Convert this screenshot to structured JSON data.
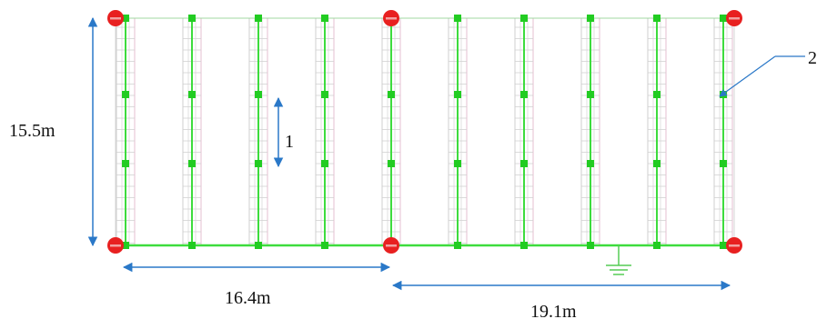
{
  "diagram": {
    "labels": {
      "height": "15.5m",
      "left_span": "16.4m",
      "right_span": "19.1m",
      "marker_1": "1",
      "marker_2": "2"
    },
    "colors": {
      "conductor": "#3ddc3d",
      "node": "#22cc22",
      "corner": "#e82020",
      "dimension": "#2a78c8",
      "grid": "#cfcfcf",
      "pink_grid": "#e6bfd0",
      "ground": "#55cc55"
    },
    "icons": [
      "ground-symbol-icon",
      "corner-electrode-icon",
      "node-marker-icon"
    ]
  }
}
